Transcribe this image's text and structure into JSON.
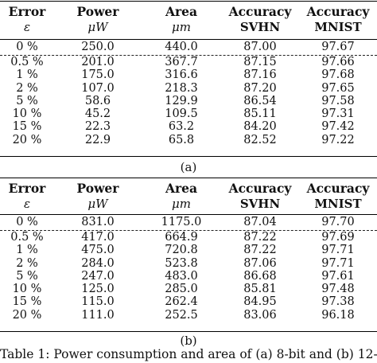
{
  "table_a": {
    "headers_top": [
      "Error",
      "Power",
      "Area",
      "Accuracy",
      "Accuracy"
    ],
    "headers_bottom": [
      "ε",
      "μW",
      "μm",
      "SVHN",
      "MNIST"
    ],
    "rows": [
      [
        "0 %",
        "250.0",
        "440.0",
        "87.00",
        "97.67"
      ],
      [
        "0.5 %",
        "201.0",
        "367.7",
        "87.15",
        "97.66"
      ],
      [
        "1 %",
        "175.0",
        "316.6",
        "87.16",
        "97.68"
      ],
      [
        "2 %",
        "107.0",
        "218.3",
        "87.20",
        "97.65"
      ],
      [
        "5 %",
        "58.6",
        "129.9",
        "86.54",
        "97.58"
      ],
      [
        "10 %",
        "45.2",
        "109.5",
        "85.11",
        "97.31"
      ],
      [
        "15 %",
        "22.3",
        "63.2",
        "84.20",
        "97.42"
      ],
      [
        "20 %",
        "22.9",
        "65.8",
        "82.52",
        "97.22"
      ]
    ],
    "label": "(a)"
  },
  "table_b": {
    "headers_top": [
      "Error",
      "Power",
      "Area",
      "Accuracy",
      "Accuracy"
    ],
    "headers_bottom": [
      "ε",
      "μW",
      "μm",
      "SVHN",
      "MNIST"
    ],
    "rows": [
      [
        "0 %",
        "831.0",
        "1175.0",
        "87.04",
        "97.70"
      ],
      [
        "0.5 %",
        "417.0",
        "664.9",
        "87.22",
        "97.69"
      ],
      [
        "1 %",
        "475.0",
        "720.8",
        "87.22",
        "97.71"
      ],
      [
        "2 %",
        "284.0",
        "523.8",
        "87.06",
        "97.71"
      ],
      [
        "5 %",
        "247.0",
        "483.0",
        "86.68",
        "97.61"
      ],
      [
        "10 %",
        "125.0",
        "285.0",
        "85.81",
        "97.48"
      ],
      [
        "15 %",
        "115.0",
        "262.4",
        "84.95",
        "97.38"
      ],
      [
        "20 %",
        "111.0",
        "252.5",
        "83.06",
        "96.18"
      ]
    ],
    "label": "(b)"
  },
  "caption": "Table 1: Power consumption and area of (a) 8-bit and (b) 12-"
}
